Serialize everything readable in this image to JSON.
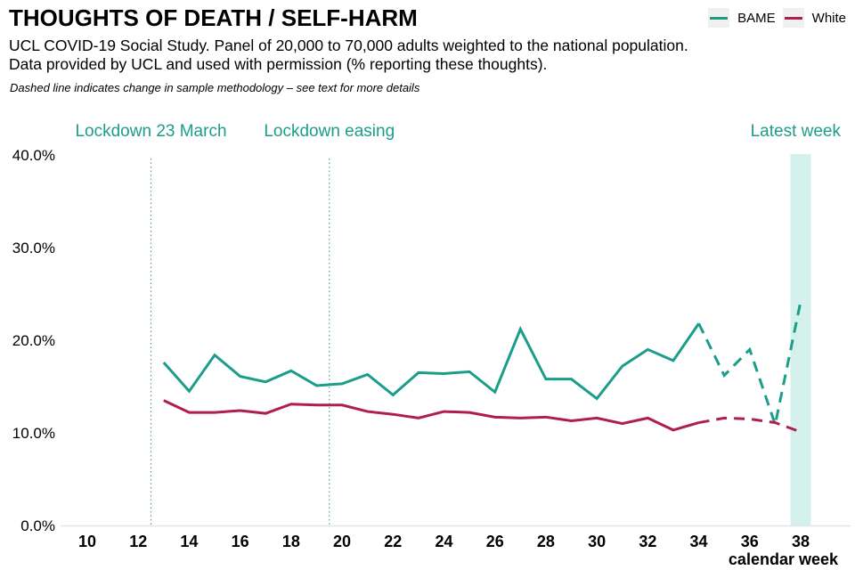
{
  "header": {
    "title": "THOUGHTS OF DEATH / SELF-HARM",
    "subtitle_line1": "UCL COVID-19 Social Study. Panel of 20,000 to 70,000 adults weighted to the national population.",
    "subtitle_line2": "Data provided by UCL and used with permission (% reporting these thoughts).",
    "note": "Dashed line indicates change in sample methodology – see text for more details"
  },
  "legend": [
    {
      "label": "BAME",
      "color": "#1a9e8a"
    },
    {
      "label": "White",
      "color": "#b01e4f"
    }
  ],
  "chart_data": {
    "type": "line",
    "title": "THOUGHTS OF DEATH / SELF-HARM",
    "xlabel": "calendar week",
    "ylabel": "",
    "xlim": [
      9.3,
      39.3
    ],
    "ylim": [
      0,
      40
    ],
    "x_ticks": [
      10,
      12,
      14,
      16,
      18,
      20,
      22,
      24,
      26,
      28,
      30,
      32,
      34,
      36,
      38
    ],
    "y_ticks": [
      0,
      10,
      20,
      30,
      40
    ],
    "y_tick_labels": [
      "0.0%",
      "10.0%",
      "20.0%",
      "30.0%",
      "40.0%"
    ],
    "grid": false,
    "legend_position": "top-right",
    "dashed_from_week": 34,
    "x": [
      13,
      14,
      15,
      16,
      17,
      18,
      19,
      20,
      21,
      22,
      23,
      24,
      25,
      26,
      27,
      28,
      29,
      30,
      31,
      32,
      33,
      34,
      35,
      36,
      37,
      38
    ],
    "series": [
      {
        "name": "BAME",
        "color": "#1a9e8a",
        "values": [
          17.6,
          14.5,
          18.4,
          16.1,
          15.5,
          16.7,
          15.1,
          15.3,
          16.3,
          14.1,
          16.5,
          16.4,
          16.6,
          14.4,
          21.2,
          15.8,
          15.8,
          13.7,
          17.2,
          19.0,
          17.8,
          21.8,
          16.2,
          19.0,
          10.9,
          24.2
        ]
      },
      {
        "name": "White",
        "color": "#b01e4f",
        "values": [
          13.5,
          12.2,
          12.2,
          12.4,
          12.1,
          13.1,
          13.0,
          13.0,
          12.3,
          12.0,
          11.6,
          12.3,
          12.2,
          11.7,
          11.6,
          11.7,
          11.3,
          11.6,
          11.0,
          11.6,
          10.3,
          11.1,
          11.6,
          11.5,
          11.1,
          10.1
        ]
      }
    ],
    "annotations": [
      {
        "label": "Lockdown 23 March",
        "type": "vline",
        "x": 12.5
      },
      {
        "label": "Lockdown easing",
        "type": "vline",
        "x": 19.5
      },
      {
        "label": "Latest week",
        "type": "highlight",
        "x_from": 37.6,
        "x_to": 38.4
      }
    ],
    "annotation_color": "#1a9e8a",
    "highlight_color": "#d5f1ec"
  }
}
